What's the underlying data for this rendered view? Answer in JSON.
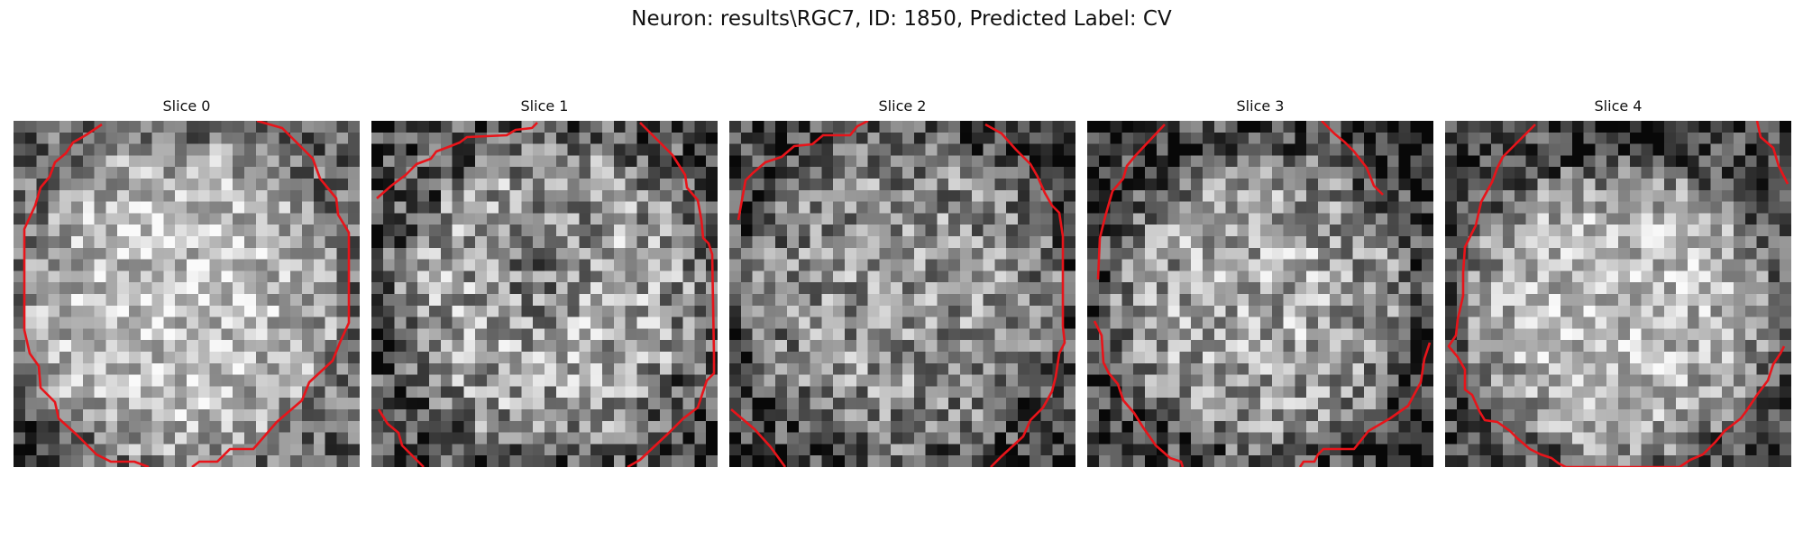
{
  "figure": {
    "title": "Neuron: results\\RGC7, ID: 1850, Predicted Label: CV"
  },
  "style": {
    "contour_color": "#e8141a"
  },
  "slices": [
    {
      "label": "Slice 0"
    },
    {
      "label": "Slice 1"
    },
    {
      "label": "Slice 2"
    },
    {
      "label": "Slice 3"
    },
    {
      "label": "Slice 4"
    }
  ]
}
